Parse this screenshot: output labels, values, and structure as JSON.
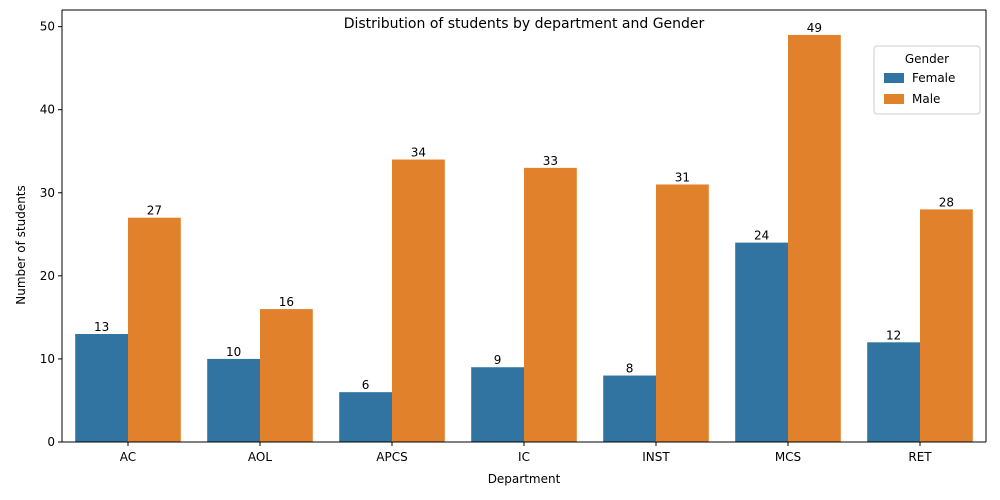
{
  "chart_data": {
    "type": "bar",
    "title": "Distribution of students by department and Gender",
    "xlabel": "Department",
    "ylabel": "Number of students",
    "categories": [
      "AC",
      "AOL",
      "APCS",
      "IC",
      "INST",
      "MCS",
      "RET"
    ],
    "series": [
      {
        "name": "Female",
        "values": [
          13,
          10,
          6,
          9,
          8,
          24,
          12
        ],
        "color": "#3274a1"
      },
      {
        "name": "Male",
        "values": [
          27,
          16,
          34,
          33,
          31,
          49,
          28
        ],
        "color": "#e1812c"
      }
    ],
    "ylim": [
      0,
      52
    ],
    "yticks": [
      0,
      10,
      20,
      30,
      40,
      50
    ],
    "grid": false,
    "legend": {
      "title": "Gender",
      "placement": "top-right"
    },
    "data_labels": true
  }
}
